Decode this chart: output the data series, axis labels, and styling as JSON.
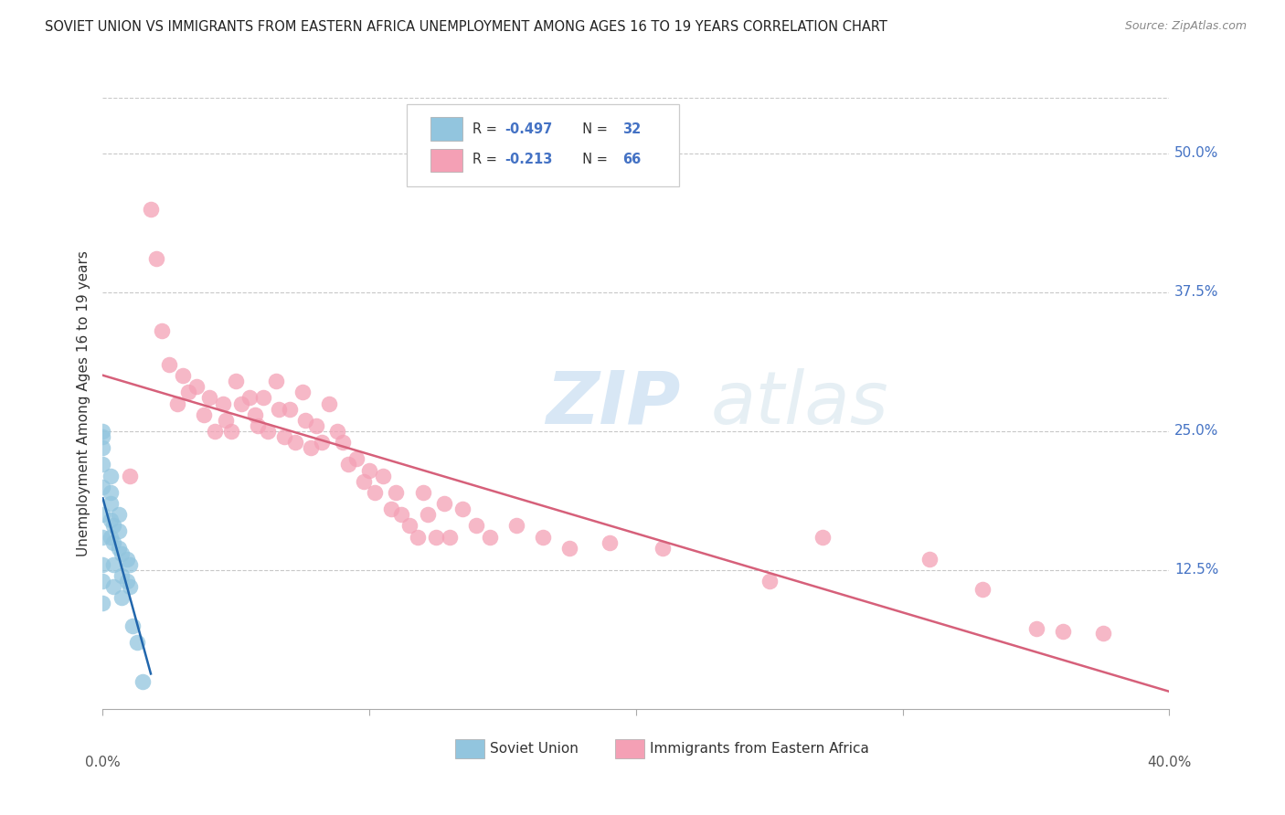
{
  "title": "SOVIET UNION VS IMMIGRANTS FROM EASTERN AFRICA UNEMPLOYMENT AMONG AGES 16 TO 19 YEARS CORRELATION CHART",
  "source": "Source: ZipAtlas.com",
  "ylabel": "Unemployment Among Ages 16 to 19 years",
  "ytick_labels": [
    "50.0%",
    "37.5%",
    "25.0%",
    "12.5%"
  ],
  "ytick_values": [
    0.5,
    0.375,
    0.25,
    0.125
  ],
  "xlim": [
    0.0,
    0.4
  ],
  "ylim": [
    0.0,
    0.55
  ],
  "watermark_zip": "ZIP",
  "watermark_atlas": "atlas",
  "legend_soviet_R": "-0.497",
  "legend_soviet_N": "32",
  "legend_eastern_R": "-0.213",
  "legend_eastern_N": "66",
  "soviet_color": "#92c5de",
  "eastern_color": "#f4a0b5",
  "soviet_line_color": "#2166ac",
  "eastern_line_color": "#d6607a",
  "background_color": "#ffffff",
  "grid_color": "#c8c8c8",
  "soviet_x": [
    0.0,
    0.0,
    0.0,
    0.0,
    0.0,
    0.0,
    0.0,
    0.0,
    0.0,
    0.0,
    0.003,
    0.003,
    0.003,
    0.003,
    0.003,
    0.004,
    0.004,
    0.004,
    0.004,
    0.006,
    0.006,
    0.006,
    0.007,
    0.007,
    0.007,
    0.009,
    0.009,
    0.01,
    0.01,
    0.011,
    0.013,
    0.015
  ],
  "soviet_y": [
    0.25,
    0.245,
    0.235,
    0.22,
    0.2,
    0.175,
    0.155,
    0.13,
    0.115,
    0.095,
    0.21,
    0.195,
    0.185,
    0.17,
    0.155,
    0.165,
    0.15,
    0.13,
    0.11,
    0.175,
    0.16,
    0.145,
    0.14,
    0.12,
    0.1,
    0.135,
    0.115,
    0.13,
    0.11,
    0.075,
    0.06,
    0.025
  ],
  "eastern_x": [
    0.01,
    0.018,
    0.02,
    0.022,
    0.025,
    0.028,
    0.03,
    0.032,
    0.035,
    0.038,
    0.04,
    0.042,
    0.045,
    0.046,
    0.048,
    0.05,
    0.052,
    0.055,
    0.057,
    0.058,
    0.06,
    0.062,
    0.065,
    0.066,
    0.068,
    0.07,
    0.072,
    0.075,
    0.076,
    0.078,
    0.08,
    0.082,
    0.085,
    0.088,
    0.09,
    0.092,
    0.095,
    0.098,
    0.1,
    0.102,
    0.105,
    0.108,
    0.11,
    0.112,
    0.115,
    0.118,
    0.12,
    0.122,
    0.125,
    0.128,
    0.13,
    0.135,
    0.14,
    0.145,
    0.155,
    0.165,
    0.175,
    0.19,
    0.21,
    0.25,
    0.27,
    0.31,
    0.33,
    0.35,
    0.36,
    0.375
  ],
  "eastern_y": [
    0.21,
    0.45,
    0.405,
    0.34,
    0.31,
    0.275,
    0.3,
    0.285,
    0.29,
    0.265,
    0.28,
    0.25,
    0.275,
    0.26,
    0.25,
    0.295,
    0.275,
    0.28,
    0.265,
    0.255,
    0.28,
    0.25,
    0.295,
    0.27,
    0.245,
    0.27,
    0.24,
    0.285,
    0.26,
    0.235,
    0.255,
    0.24,
    0.275,
    0.25,
    0.24,
    0.22,
    0.225,
    0.205,
    0.215,
    0.195,
    0.21,
    0.18,
    0.195,
    0.175,
    0.165,
    0.155,
    0.195,
    0.175,
    0.155,
    0.185,
    0.155,
    0.18,
    0.165,
    0.155,
    0.165,
    0.155,
    0.145,
    0.15,
    0.145,
    0.115,
    0.155,
    0.135,
    0.108,
    0.072,
    0.07,
    0.068
  ],
  "xtick_positions": [
    0.0,
    0.1,
    0.2,
    0.3,
    0.4
  ]
}
